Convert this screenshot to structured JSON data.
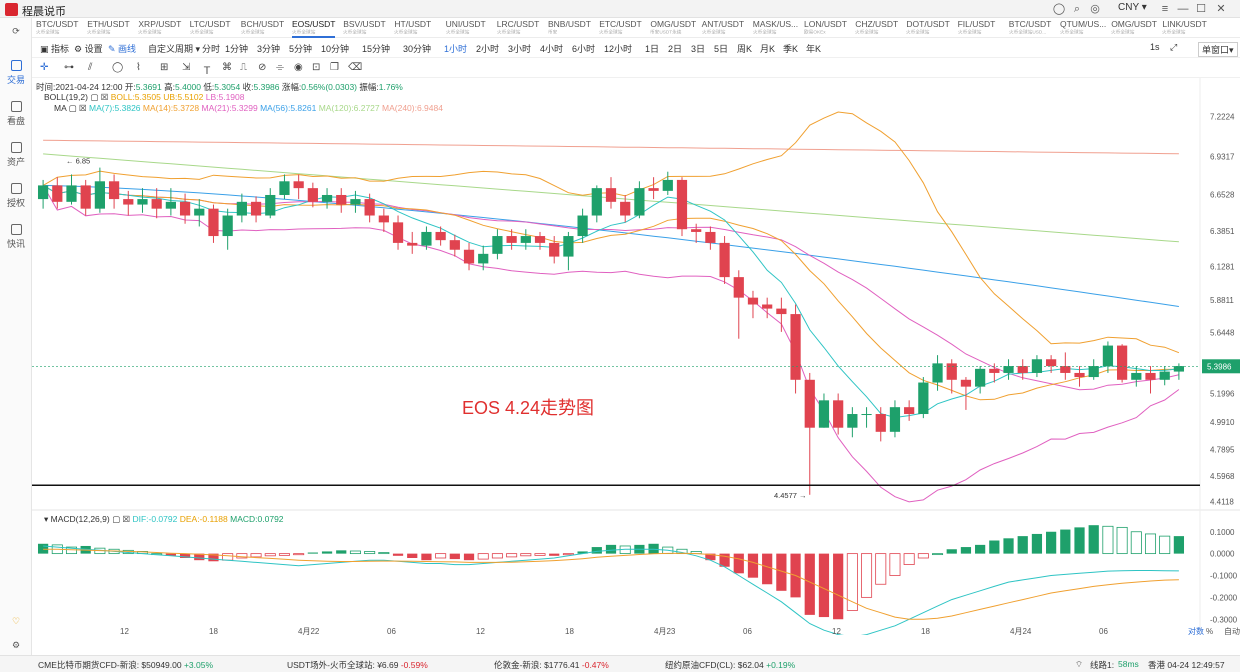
{
  "app": {
    "title": "程晨说币",
    "currency": "CNY"
  },
  "sidebar": {
    "items": [
      {
        "label": "交易",
        "icon": "chart-icon",
        "active": true
      },
      {
        "label": "看盘",
        "icon": "monitor-icon"
      },
      {
        "label": "资产",
        "icon": "wallet-icon"
      },
      {
        "label": "授权",
        "icon": "key-icon"
      },
      {
        "label": "快讯",
        "icon": "news-icon"
      }
    ]
  },
  "tickers": [
    {
      "name": "BTC/USDT",
      "sub": "火币全球站"
    },
    {
      "name": "ETH/USDT",
      "sub": "火币全球站"
    },
    {
      "name": "XRP/USDT",
      "sub": "火币全球站"
    },
    {
      "name": "LTC/USDT",
      "sub": "火币全球站"
    },
    {
      "name": "BCH/USDT",
      "sub": "火币全球站"
    },
    {
      "name": "EOS/USDT",
      "sub": "火币全球站",
      "active": true
    },
    {
      "name": "BSV/USDT",
      "sub": "火币全球站"
    },
    {
      "name": "HT/USDT",
      "sub": "火币全球站"
    },
    {
      "name": "UNI/USDT",
      "sub": "火币全球站"
    },
    {
      "name": "LRC/USDT",
      "sub": "火币全球站"
    },
    {
      "name": "BNB/USDT",
      "sub": "币安"
    },
    {
      "name": "ETC/USDT",
      "sub": "火币全球站"
    },
    {
      "name": "OMG/USDT",
      "sub": "币安USDT永续"
    },
    {
      "name": "ANT/USDT",
      "sub": "火币全球站"
    },
    {
      "name": "MASK/US...",
      "sub": "火币全球站"
    },
    {
      "name": "LON/USDT",
      "sub": "欧易OKEx"
    },
    {
      "name": "CHZ/USDT",
      "sub": "火币全球站"
    },
    {
      "name": "DOT/USDT",
      "sub": "火币全球站"
    },
    {
      "name": "FIL/USDT",
      "sub": "火币全球站"
    },
    {
      "name": "BTC/USDT",
      "sub": "火币全球站USD..."
    },
    {
      "name": "QTUM/US...",
      "sub": "火币全球站"
    },
    {
      "name": "OMG/USDT",
      "sub": "火币全球站"
    },
    {
      "name": "LINK/USDT",
      "sub": "火币全球站"
    }
  ],
  "toolbar": {
    "indicator": "指标",
    "settings": "设置",
    "draw": "画线",
    "custom": "自定义周期",
    "periods": [
      "分时",
      "1分钟",
      "3分钟",
      "5分钟",
      "10分钟",
      "15分钟",
      "30分钟",
      "1小时",
      "2小时",
      "3小时",
      "4小时",
      "6小时",
      "12小时",
      "1日",
      "2日",
      "3日",
      "5日",
      "周K",
      "月K",
      "季K",
      "年K"
    ],
    "active_period": "1小时",
    "right_period": "1s",
    "layout": "单窗口"
  },
  "info": {
    "time_label": "时间:",
    "time": "2021-04-24 12:00",
    "open_label": "开:",
    "open": "5.3691",
    "high_label": "高:",
    "high": "5.4000",
    "low_label": "低:",
    "low": "5.3054",
    "close_label": "收:",
    "close": "5.3986",
    "change_label": "涨幅:",
    "change": "0.56%(0.0303)",
    "amp_label": "振幅:",
    "amp": "1.76%"
  },
  "boll": {
    "label": "BOLL(19,2)",
    "boll": "BOLL:5.3505",
    "ub": "UB:5.5102",
    "lb": "LB:5.1908"
  },
  "ma": {
    "label": "MA",
    "items": [
      {
        "text": "MA(7):5.3826",
        "color": "#2ec4c4"
      },
      {
        "text": "MA(14):5.3728",
        "color": "#f0a030"
      },
      {
        "text": "MA(21):5.3299",
        "color": "#e060c0"
      },
      {
        "text": "MA(56):5.8261",
        "color": "#3aa0e8"
      },
      {
        "text": "MA(120):6.2727",
        "color": "#a8d88a"
      },
      {
        "text": "MA(240):6.9484",
        "color": "#f0a090"
      }
    ]
  },
  "macd": {
    "label": "MACD(12,26,9)",
    "dif": "DIF:-0.0792",
    "dea": "DEA:-0.1188",
    "macd": "MACD:0.0792"
  },
  "annotation": "EOS 4.24走势图",
  "colors": {
    "up": "#1ea06b",
    "down": "#e0434f",
    "boll_mid": "#f0a030",
    "boll_band": "#e060c0",
    "ma7": "#2ec4c4",
    "ma56": "#3aa0e8",
    "ma120": "#a8d88a",
    "ma240": "#f0a090",
    "dif": "#2ec4c4",
    "dea": "#f0a030",
    "current_price": "#1ea06b"
  },
  "chart_data": {
    "type": "candlestick",
    "price_axis": [
      "7.2224",
      "6.9317",
      "6.6528",
      "6.3851",
      "6.1281",
      "5.8811",
      "5.6448",
      "5.3986",
      "5.1996",
      "4.9910",
      "4.7895",
      "4.5968",
      "4.4118"
    ],
    "macd_axis": [
      "0.1000",
      "0.0000",
      "-0.1000",
      "-0.2000",
      "-0.3000"
    ],
    "x_labels": [
      "12",
      "18",
      "4月22",
      "06",
      "12",
      "18",
      "4月23",
      "06",
      "12",
      "18",
      "4月24",
      "06"
    ],
    "bottom_right": [
      "对数",
      "%",
      "自动"
    ],
    "high_marker": "6.85",
    "low_marker": "4.4577",
    "current_price": "5.3986",
    "support_line": 4.53,
    "candles": [
      [
        6.62,
        6.72,
        6.76,
        6.55
      ],
      [
        6.72,
        6.6,
        6.78,
        6.55
      ],
      [
        6.6,
        6.72,
        6.8,
        6.58
      ],
      [
        6.72,
        6.55,
        6.76,
        6.5
      ],
      [
        6.55,
        6.75,
        6.85,
        6.52
      ],
      [
        6.75,
        6.62,
        6.8,
        6.55
      ],
      [
        6.62,
        6.58,
        6.68,
        6.5
      ],
      [
        6.58,
        6.62,
        6.7,
        6.52
      ],
      [
        6.62,
        6.55,
        6.7,
        6.48
      ],
      [
        6.55,
        6.6,
        6.7,
        6.5
      ],
      [
        6.6,
        6.5,
        6.66,
        6.44
      ],
      [
        6.5,
        6.55,
        6.62,
        6.42
      ],
      [
        6.55,
        6.35,
        6.58,
        6.3
      ],
      [
        6.35,
        6.5,
        6.55,
        6.25
      ],
      [
        6.5,
        6.6,
        6.66,
        6.45
      ],
      [
        6.6,
        6.5,
        6.64,
        6.45
      ],
      [
        6.5,
        6.65,
        6.7,
        6.48
      ],
      [
        6.65,
        6.75,
        6.8,
        6.62
      ],
      [
        6.75,
        6.7,
        6.8,
        6.62
      ],
      [
        6.7,
        6.6,
        6.74,
        6.56
      ],
      [
        6.6,
        6.65,
        6.7,
        6.55
      ],
      [
        6.65,
        6.58,
        6.7,
        6.52
      ],
      [
        6.58,
        6.62,
        6.68,
        6.52
      ],
      [
        6.62,
        6.5,
        6.66,
        6.45
      ],
      [
        6.5,
        6.45,
        6.55,
        6.38
      ],
      [
        6.45,
        6.3,
        6.5,
        6.25
      ],
      [
        6.3,
        6.28,
        6.38,
        6.22
      ],
      [
        6.28,
        6.38,
        6.42,
        6.25
      ],
      [
        6.38,
        6.32,
        6.42,
        6.28
      ],
      [
        6.32,
        6.25,
        6.36,
        6.2
      ],
      [
        6.25,
        6.15,
        6.3,
        6.1
      ],
      [
        6.15,
        6.22,
        6.28,
        6.1
      ],
      [
        6.22,
        6.35,
        6.4,
        6.18
      ],
      [
        6.35,
        6.3,
        6.4,
        6.25
      ],
      [
        6.3,
        6.35,
        6.4,
        6.25
      ],
      [
        6.35,
        6.3,
        6.38,
        6.25
      ],
      [
        6.3,
        6.2,
        6.35,
        6.15
      ],
      [
        6.2,
        6.35,
        6.38,
        6.1
      ],
      [
        6.35,
        6.5,
        6.55,
        6.3
      ],
      [
        6.5,
        6.7,
        6.72,
        6.45
      ],
      [
        6.7,
        6.6,
        6.78,
        6.55
      ],
      [
        6.6,
        6.5,
        6.65,
        6.45
      ],
      [
        6.5,
        6.7,
        6.75,
        6.48
      ],
      [
        6.7,
        6.68,
        6.78,
        6.62
      ],
      [
        6.68,
        6.76,
        6.82,
        6.65
      ],
      [
        6.76,
        6.4,
        6.78,
        6.35
      ],
      [
        6.4,
        6.38,
        6.44,
        6.3
      ],
      [
        6.38,
        6.3,
        6.42,
        6.25
      ],
      [
        6.3,
        6.05,
        6.35,
        6.0
      ],
      [
        6.05,
        5.9,
        6.1,
        5.6
      ],
      [
        5.9,
        5.85,
        5.95,
        5.75
      ],
      [
        5.85,
        5.82,
        5.9,
        5.75
      ],
      [
        5.82,
        5.78,
        5.9,
        5.65
      ],
      [
        5.78,
        5.3,
        5.85,
        5.2
      ],
      [
        5.3,
        4.95,
        5.35,
        4.46
      ],
      [
        4.95,
        5.15,
        5.2,
        4.95
      ],
      [
        5.15,
        4.95,
        5.2,
        4.9
      ],
      [
        4.95,
        5.05,
        5.1,
        4.88
      ],
      [
        5.05,
        5.05,
        5.1,
        4.95
      ],
      [
        5.05,
        4.92,
        5.1,
        4.85
      ],
      [
        4.92,
        5.1,
        5.15,
        4.88
      ],
      [
        5.1,
        5.05,
        5.15,
        5.0
      ],
      [
        5.05,
        5.28,
        5.32,
        5.02
      ],
      [
        5.28,
        5.42,
        5.48,
        5.22
      ],
      [
        5.42,
        5.3,
        5.45,
        5.2
      ],
      [
        5.3,
        5.25,
        5.32,
        5.08
      ],
      [
        5.25,
        5.38,
        5.4,
        5.2
      ],
      [
        5.38,
        5.35,
        5.42,
        5.28
      ],
      [
        5.35,
        5.4,
        5.45,
        5.3
      ],
      [
        5.4,
        5.35,
        5.45,
        5.3
      ],
      [
        5.35,
        5.45,
        5.48,
        5.32
      ],
      [
        5.45,
        5.4,
        5.48,
        5.35
      ],
      [
        5.4,
        5.35,
        5.5,
        5.3
      ],
      [
        5.35,
        5.32,
        5.4,
        5.25
      ],
      [
        5.32,
        5.4,
        5.45,
        5.3
      ],
      [
        5.4,
        5.55,
        5.58,
        5.35
      ],
      [
        5.55,
        5.3,
        5.56,
        5.28
      ],
      [
        5.3,
        5.35,
        5.4,
        5.25
      ],
      [
        5.35,
        5.3,
        5.4,
        5.2
      ],
      [
        5.3,
        5.36,
        5.4,
        5.26
      ],
      [
        5.36,
        5.4,
        5.42,
        5.3
      ]
    ],
    "macd_hist": [
      0.045,
      0.04,
      0.03,
      0.035,
      0.025,
      0.02,
      0.015,
      0.01,
      0.0,
      -0.01,
      -0.02,
      -0.03,
      -0.035,
      -0.03,
      -0.02,
      -0.015,
      -0.01,
      -0.008,
      -0.005,
      0.005,
      0.01,
      0.015,
      0.012,
      0.01,
      0.005,
      -0.01,
      -0.02,
      -0.03,
      -0.02,
      -0.025,
      -0.03,
      -0.025,
      -0.02,
      -0.015,
      -0.01,
      -0.008,
      -0.01,
      -0.005,
      0.01,
      0.03,
      0.04,
      0.035,
      0.04,
      0.045,
      0.03,
      0.02,
      0.01,
      -0.03,
      -0.06,
      -0.09,
      -0.11,
      -0.14,
      -0.17,
      -0.2,
      -0.28,
      -0.29,
      -0.3,
      -0.26,
      -0.2,
      -0.14,
      -0.1,
      -0.05,
      -0.02,
      0.0,
      0.02,
      0.03,
      0.04,
      0.06,
      0.07,
      0.08,
      0.09,
      0.1,
      0.11,
      0.12,
      0.13,
      0.125,
      0.12,
      0.1,
      0.09,
      0.08,
      0.08
    ],
    "dif": [
      0.035,
      0.03,
      0.025,
      0.02,
      0.015,
      0.01,
      0.005,
      0.0,
      -0.005,
      -0.01,
      -0.015,
      -0.02,
      -0.025,
      -0.03,
      -0.035,
      -0.04,
      -0.045,
      -0.05,
      -0.055,
      -0.05,
      -0.045,
      -0.04,
      -0.035,
      -0.03,
      -0.03,
      -0.035,
      -0.04,
      -0.045,
      -0.045,
      -0.05,
      -0.05,
      -0.045,
      -0.04,
      -0.035,
      -0.03,
      -0.025,
      -0.02,
      -0.01,
      0.0,
      0.01,
      0.015,
      0.02,
      0.02,
      0.02,
      0.015,
      0.005,
      -0.01,
      -0.03,
      -0.06,
      -0.1,
      -0.14,
      -0.18,
      -0.22,
      -0.27,
      -0.32,
      -0.35,
      -0.37,
      -0.38,
      -0.37,
      -0.35,
      -0.33,
      -0.3,
      -0.27,
      -0.24,
      -0.21,
      -0.19,
      -0.17,
      -0.15,
      -0.13,
      -0.12,
      -0.11,
      -0.1,
      -0.095,
      -0.09,
      -0.085,
      -0.08,
      -0.078,
      -0.077,
      -0.077,
      -0.078,
      -0.079
    ],
    "dea": [
      0.02,
      0.02,
      0.018,
      0.016,
      0.014,
      0.012,
      0.01,
      0.008,
      0.005,
      0.002,
      0.0,
      -0.003,
      -0.006,
      -0.01,
      -0.014,
      -0.018,
      -0.022,
      -0.026,
      -0.03,
      -0.033,
      -0.035,
      -0.036,
      -0.036,
      -0.035,
      -0.034,
      -0.034,
      -0.035,
      -0.036,
      -0.037,
      -0.038,
      -0.04,
      -0.04,
      -0.04,
      -0.039,
      -0.037,
      -0.035,
      -0.032,
      -0.028,
      -0.023,
      -0.017,
      -0.012,
      -0.008,
      -0.004,
      -0.001,
      0.001,
      0.002,
      0.0,
      -0.004,
      -0.012,
      -0.024,
      -0.04,
      -0.06,
      -0.08,
      -0.1,
      -0.13,
      -0.16,
      -0.19,
      -0.22,
      -0.25,
      -0.27,
      -0.29,
      -0.3,
      -0.3,
      -0.295,
      -0.285,
      -0.27,
      -0.255,
      -0.24,
      -0.225,
      -0.21,
      -0.195,
      -0.18,
      -0.17,
      -0.16,
      -0.15,
      -0.142,
      -0.135,
      -0.13,
      -0.125,
      -0.121,
      -0.119
    ]
  },
  "footer": {
    "items": [
      {
        "label": "CME比特币期货CFD-新浪:",
        "value": "$50949.00",
        "change": "+3.05%",
        "dir": "up"
      },
      {
        "label": "USDT场外-火币全球站:",
        "value": "¥6.69",
        "change": "-0.59%",
        "dir": "down"
      },
      {
        "label": "伦敦金-新浪:",
        "value": "$1776.41",
        "change": "-0.47%",
        "dir": "down"
      },
      {
        "label": "纽约原油CFD(CL):",
        "value": "$62.04",
        "change": "+0.19%",
        "dir": "up"
      }
    ],
    "line": "线路1:",
    "ping": "58ms",
    "clock": "香港 04-24 12:49:57"
  }
}
